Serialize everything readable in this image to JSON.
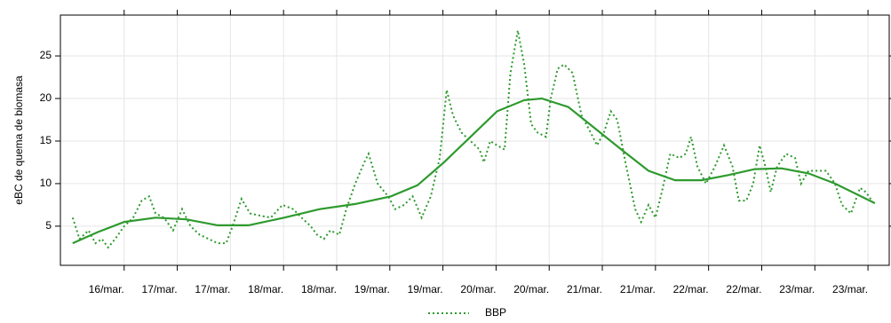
{
  "chart_data": {
    "type": "line",
    "ylabel": "eBC de quema de biomasa",
    "xlim": [
      -1.2,
      14.4
    ],
    "ylim": [
      0.4,
      29.8
    ],
    "yticks": [
      5,
      10,
      15,
      20,
      25
    ],
    "xticks": [
      {
        "value": 0,
        "label": "16/mar."
      },
      {
        "value": 1,
        "label": "17/mar."
      },
      {
        "value": 2,
        "label": "17/mar."
      },
      {
        "value": 3,
        "label": "18/mar."
      },
      {
        "value": 4,
        "label": "18/mar."
      },
      {
        "value": 5,
        "label": "19/mar."
      },
      {
        "value": 6,
        "label": "19/mar."
      },
      {
        "value": 7,
        "label": "20/mar."
      },
      {
        "value": 8,
        "label": "20/mar."
      },
      {
        "value": 9,
        "label": "21/mar."
      },
      {
        "value": 10,
        "label": "21/mar."
      },
      {
        "value": 11,
        "label": "22/mar."
      },
      {
        "value": 12,
        "label": "22/mar."
      },
      {
        "value": 13,
        "label": "23/mar."
      },
      {
        "value": 14,
        "label": "23/mar."
      }
    ],
    "grid": true,
    "series": [
      {
        "name": "BBP",
        "color": "#2e9a2e",
        "x": [
          -0.97,
          -0.84,
          -0.67,
          -0.54,
          -0.42,
          -0.3,
          -0.17,
          0,
          0.17,
          0.33,
          0.47,
          0.59,
          0.75,
          0.92,
          1.09,
          1.25,
          1.42,
          1.59,
          1.76,
          1.92,
          2.04,
          2.21,
          2.37,
          2.59,
          2.76,
          2.98,
          3.18,
          3.34,
          3.51,
          3.63,
          3.76,
          3.88,
          4.05,
          4.18,
          4.35,
          4.52,
          4.6,
          4.77,
          4.97,
          5.1,
          5.27,
          5.43,
          5.6,
          5.77,
          5.94,
          6.07,
          6.19,
          6.35,
          6.52,
          6.69,
          6.77,
          6.89,
          7.02,
          7.16,
          7.27,
          7.41,
          7.53,
          7.66,
          7.78,
          7.94,
          8.03,
          8.16,
          8.28,
          8.44,
          8.61,
          8.78,
          8.9,
          9.03,
          9.16,
          9.28,
          9.45,
          9.62,
          9.73,
          9.87,
          10.0,
          10.12,
          10.28,
          10.45,
          10.57,
          10.67,
          10.79,
          10.95,
          11.12,
          11.29,
          11.45,
          11.57,
          11.71,
          11.84,
          11.96,
          12.07,
          12.17,
          12.29,
          12.46,
          12.63,
          12.74,
          12.88,
          13.04,
          13.21,
          13.38,
          13.51,
          13.68,
          13.85,
          13.96,
          14.13
        ],
        "values": [
          6,
          3.5,
          4.5,
          3,
          3.5,
          2.5,
          3.5,
          5,
          6,
          8,
          8.5,
          6.5,
          6,
          4.5,
          7,
          5,
          4,
          3.5,
          3,
          3,
          5,
          8.2,
          6.5,
          6.2,
          6,
          7.5,
          7,
          6,
          5,
          4,
          3.5,
          4.5,
          4,
          7,
          10,
          12.5,
          13.5,
          10,
          8.5,
          7,
          7.5,
          8.5,
          6,
          8.5,
          13,
          21,
          18,
          16,
          15,
          14,
          12.5,
          15,
          14.5,
          14,
          23,
          28,
          24,
          17,
          16,
          15.5,
          20,
          23.5,
          24,
          23,
          18,
          16,
          14.5,
          16,
          18.5,
          17.5,
          12,
          7,
          5.5,
          7.5,
          6,
          9,
          13.5,
          13,
          13.5,
          15.5,
          12,
          10,
          12,
          14.5,
          12,
          8,
          8,
          10,
          14.5,
          12,
          9,
          12,
          13.5,
          13,
          10,
          11.5,
          11.5,
          11.5,
          10,
          7.5,
          6.5,
          9.5,
          9,
          7.5
        ]
      }
    ],
    "smooth": {
      "color": "#2e9a2e",
      "x": [
        -0.97,
        -0.5,
        0,
        0.59,
        1.17,
        1.76,
        2.34,
        3.01,
        3.68,
        4.35,
        5.02,
        5.52,
        6.02,
        6.52,
        7.02,
        7.53,
        7.86,
        8.36,
        8.86,
        9.36,
        9.87,
        10.37,
        10.87,
        11.37,
        11.87,
        12.37,
        12.88,
        13.38,
        14.13
      ],
      "values": [
        3,
        4.3,
        5.5,
        6,
        5.8,
        5.1,
        5.1,
        6,
        7,
        7.6,
        8.5,
        9.8,
        12.5,
        15.5,
        18.5,
        19.8,
        20,
        19,
        16.5,
        14,
        11.5,
        10.4,
        10.4,
        11,
        11.7,
        11.8,
        11.2,
        10,
        7.7
      ]
    }
  }
}
